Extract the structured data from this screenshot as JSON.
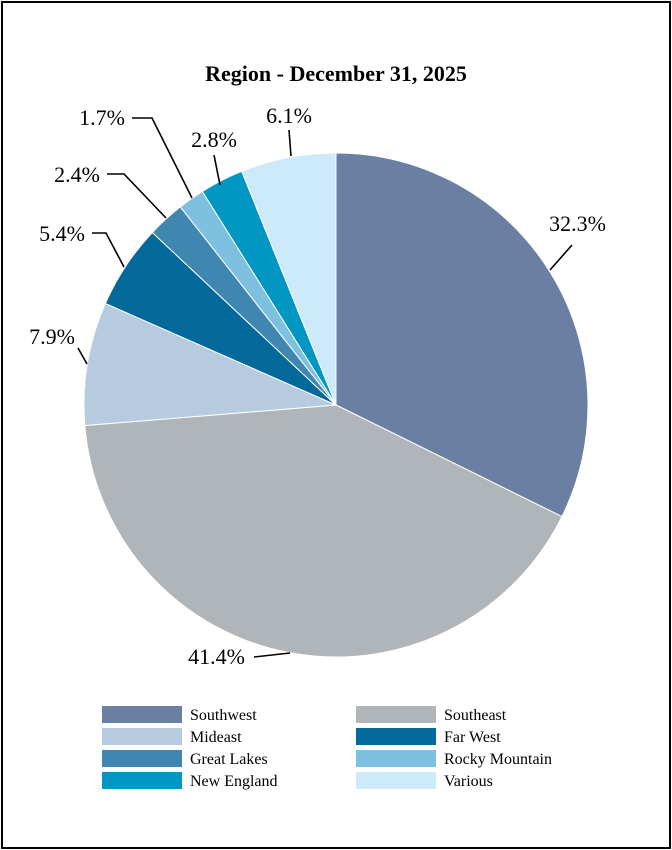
{
  "chart_data": {
    "type": "pie",
    "title": "Region - December 31, 2025",
    "slices": [
      {
        "name": "Southwest",
        "value": 32.3,
        "label": "32.3%",
        "color": "#6b7fa3"
      },
      {
        "name": "Southeast",
        "value": 41.4,
        "label": "41.4%",
        "color": "#afb5b9"
      },
      {
        "name": "Mideast",
        "value": 7.9,
        "label": "7.9%",
        "color": "#b6cbe0"
      },
      {
        "name": "Far West",
        "value": 5.4,
        "label": "5.4%",
        "color": "#03689a"
      },
      {
        "name": "Great Lakes",
        "value": 2.4,
        "label": "2.4%",
        "color": "#3f87b1"
      },
      {
        "name": "Rocky Mountain",
        "value": 1.7,
        "label": "1.7%",
        "color": "#7ec0df"
      },
      {
        "name": "New England",
        "value": 2.8,
        "label": "2.8%",
        "color": "#0296c3"
      },
      {
        "name": "Various",
        "value": 6.1,
        "label": "6.1%",
        "color": "#cdeafb"
      }
    ],
    "start": "12 o'clock",
    "direction": "clockwise",
    "legend_position": "bottom",
    "legend": [
      "Southwest",
      "Southeast",
      "Mideast",
      "Far West",
      "Great Lakes",
      "Rocky Mountain",
      "New England",
      "Various"
    ]
  }
}
